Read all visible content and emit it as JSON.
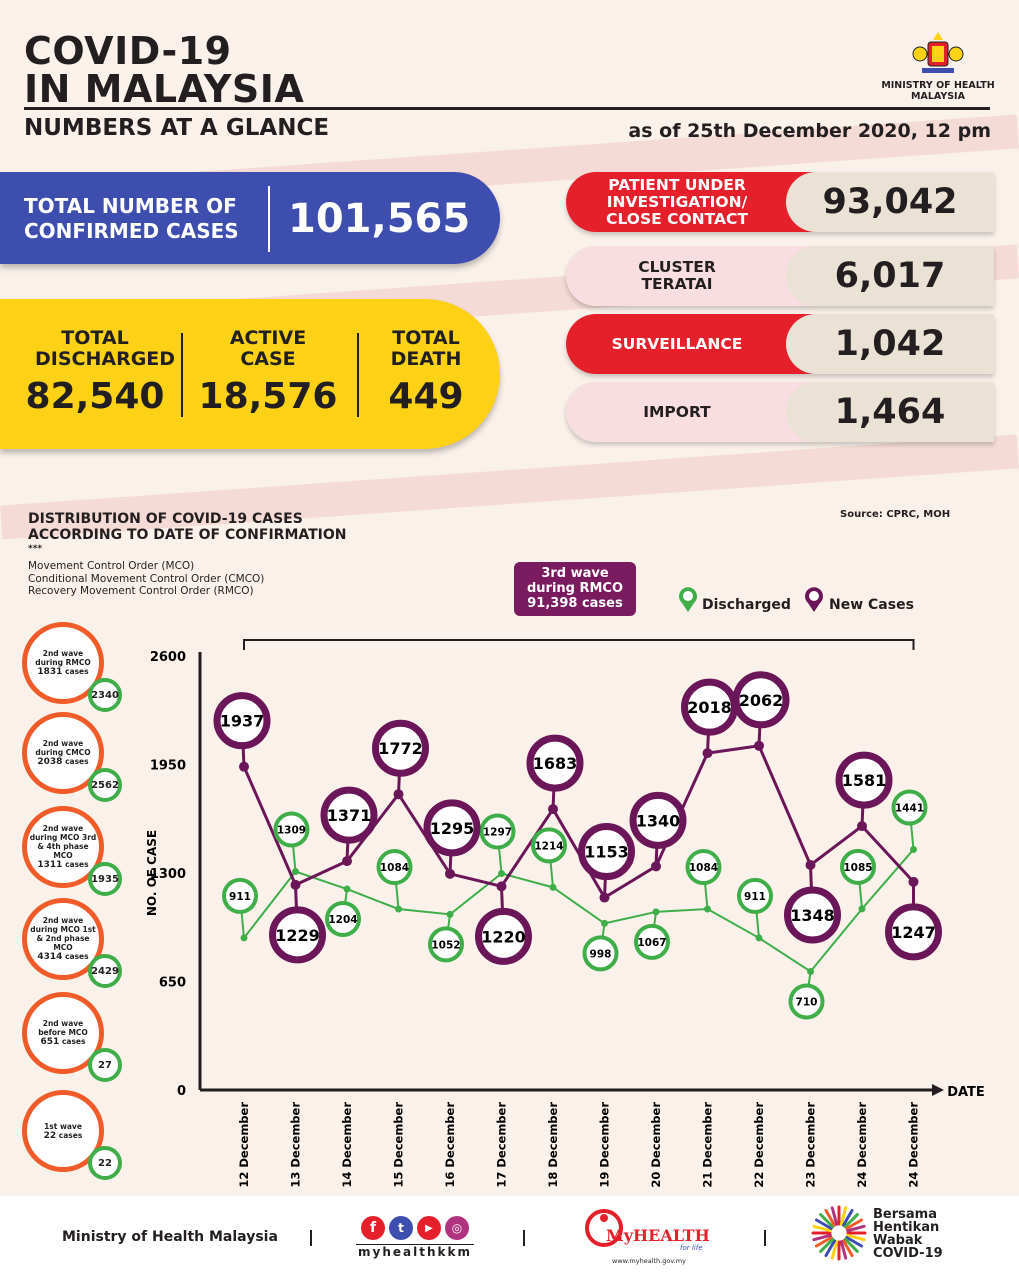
{
  "header": {
    "title_line1": "COVID-19",
    "title_line2": "IN MALAYSIA",
    "subtitle": "NUMBERS AT A GLANCE",
    "as_of": "as of 25th December 2020, 12 pm",
    "ministry_line1": "MINISTRY OF HEALTH",
    "ministry_line2": "MALAYSIA"
  },
  "summary": {
    "total_label": "TOTAL NUMBER OF CONFIRMED CASES",
    "total_value": "101,565",
    "discharged_label": "TOTAL DISCHARGED",
    "discharged_value": "82,540",
    "active_label": "ACTIVE CASE",
    "active_value": "18,576",
    "death_label": "TOTAL DEATH",
    "death_value": "449"
  },
  "categories": [
    {
      "label": "PATIENT UNDER INVESTIGATION/ CLOSE CONTACT",
      "value": "93,042"
    },
    {
      "label": "CLUSTER TERATAI",
      "value": "6,017"
    },
    {
      "label": "SURVEILLANCE",
      "value": "1,042"
    },
    {
      "label": "IMPORT",
      "value": "1,464"
    }
  ],
  "chart_header": {
    "title_line1": "DISTRIBUTION OF COVID-19 CASES",
    "title_line2": "ACCORDING TO DATE OF CONFIRMATION",
    "stars": "***",
    "glossary": [
      "Movement Control Order (MCO)",
      "Conditional Movement Control Order (CMCO)",
      "Recovery Movement Control Order (RMCO)"
    ],
    "source": "Source: CPRC, MOH",
    "wave_line1": "3rd wave",
    "wave_line2": "during RMCO",
    "wave_line3": "91,398 cases",
    "legend_discharged": "Discharged",
    "legend_new": "New Cases"
  },
  "waves": [
    {
      "l1": "2nd wave",
      "l2": "during RMCO",
      "l3": "1831",
      "l4": "cases",
      "discharged": "2340"
    },
    {
      "l1": "2nd wave",
      "l2": "during CMCO",
      "l3": "2038",
      "l4": "cases",
      "discharged": "2562"
    },
    {
      "l1": "2nd wave",
      "l2": "during MCO 3rd & 4th phase MCO",
      "l3": "1311",
      "l4": "cases",
      "discharged": "1935"
    },
    {
      "l1": "2nd wave",
      "l2": "during MCO 1st & 2nd phase MCO",
      "l3": "4314",
      "l4": "cases",
      "discharged": "2429"
    },
    {
      "l1": "2nd wave",
      "l2": "before MCO",
      "l3": "651",
      "l4": "cases",
      "discharged": "27"
    },
    {
      "l1": "1st wave",
      "l2": "",
      "l3": "22",
      "l4": "cases",
      "discharged": "22"
    }
  ],
  "chart_data": {
    "type": "line",
    "x": [
      "12 December",
      "13 December",
      "14 December",
      "15 December",
      "16 December",
      "17 December",
      "18 December",
      "19 December",
      "20 December",
      "21 December",
      "22 December",
      "23 December",
      "24 December",
      "24 December"
    ],
    "series": [
      {
        "name": "Discharged",
        "color": "#3fae49",
        "values": [
          911,
          1309,
          1204,
          1084,
          1052,
          1297,
          1214,
          998,
          1067,
          1084,
          911,
          710,
          1085,
          1441
        ]
      },
      {
        "name": "New Cases",
        "color": "#6b1659",
        "values": [
          1937,
          1229,
          1371,
          1772,
          1295,
          1220,
          1683,
          1153,
          1340,
          2018,
          2062,
          1348,
          1581,
          1247
        ]
      }
    ],
    "ylabel": "NO. OF CASE",
    "xlabel": "DATE",
    "ylim": [
      0,
      2600
    ],
    "yticks": [
      0,
      650,
      1300,
      1950,
      2600
    ]
  },
  "footer": {
    "ministry": "Ministry of Health Malaysia",
    "social_handle": "myhealthkkm",
    "myhealth_brand": "MyHEALTH",
    "myhealth_tag": "for life",
    "myhealth_url": "www.myhealth.gov.my",
    "campaign_line1": "Bersama",
    "campaign_line2": "Hentikan",
    "campaign_line3": "Wabak",
    "campaign_line4": "COVID-19"
  }
}
